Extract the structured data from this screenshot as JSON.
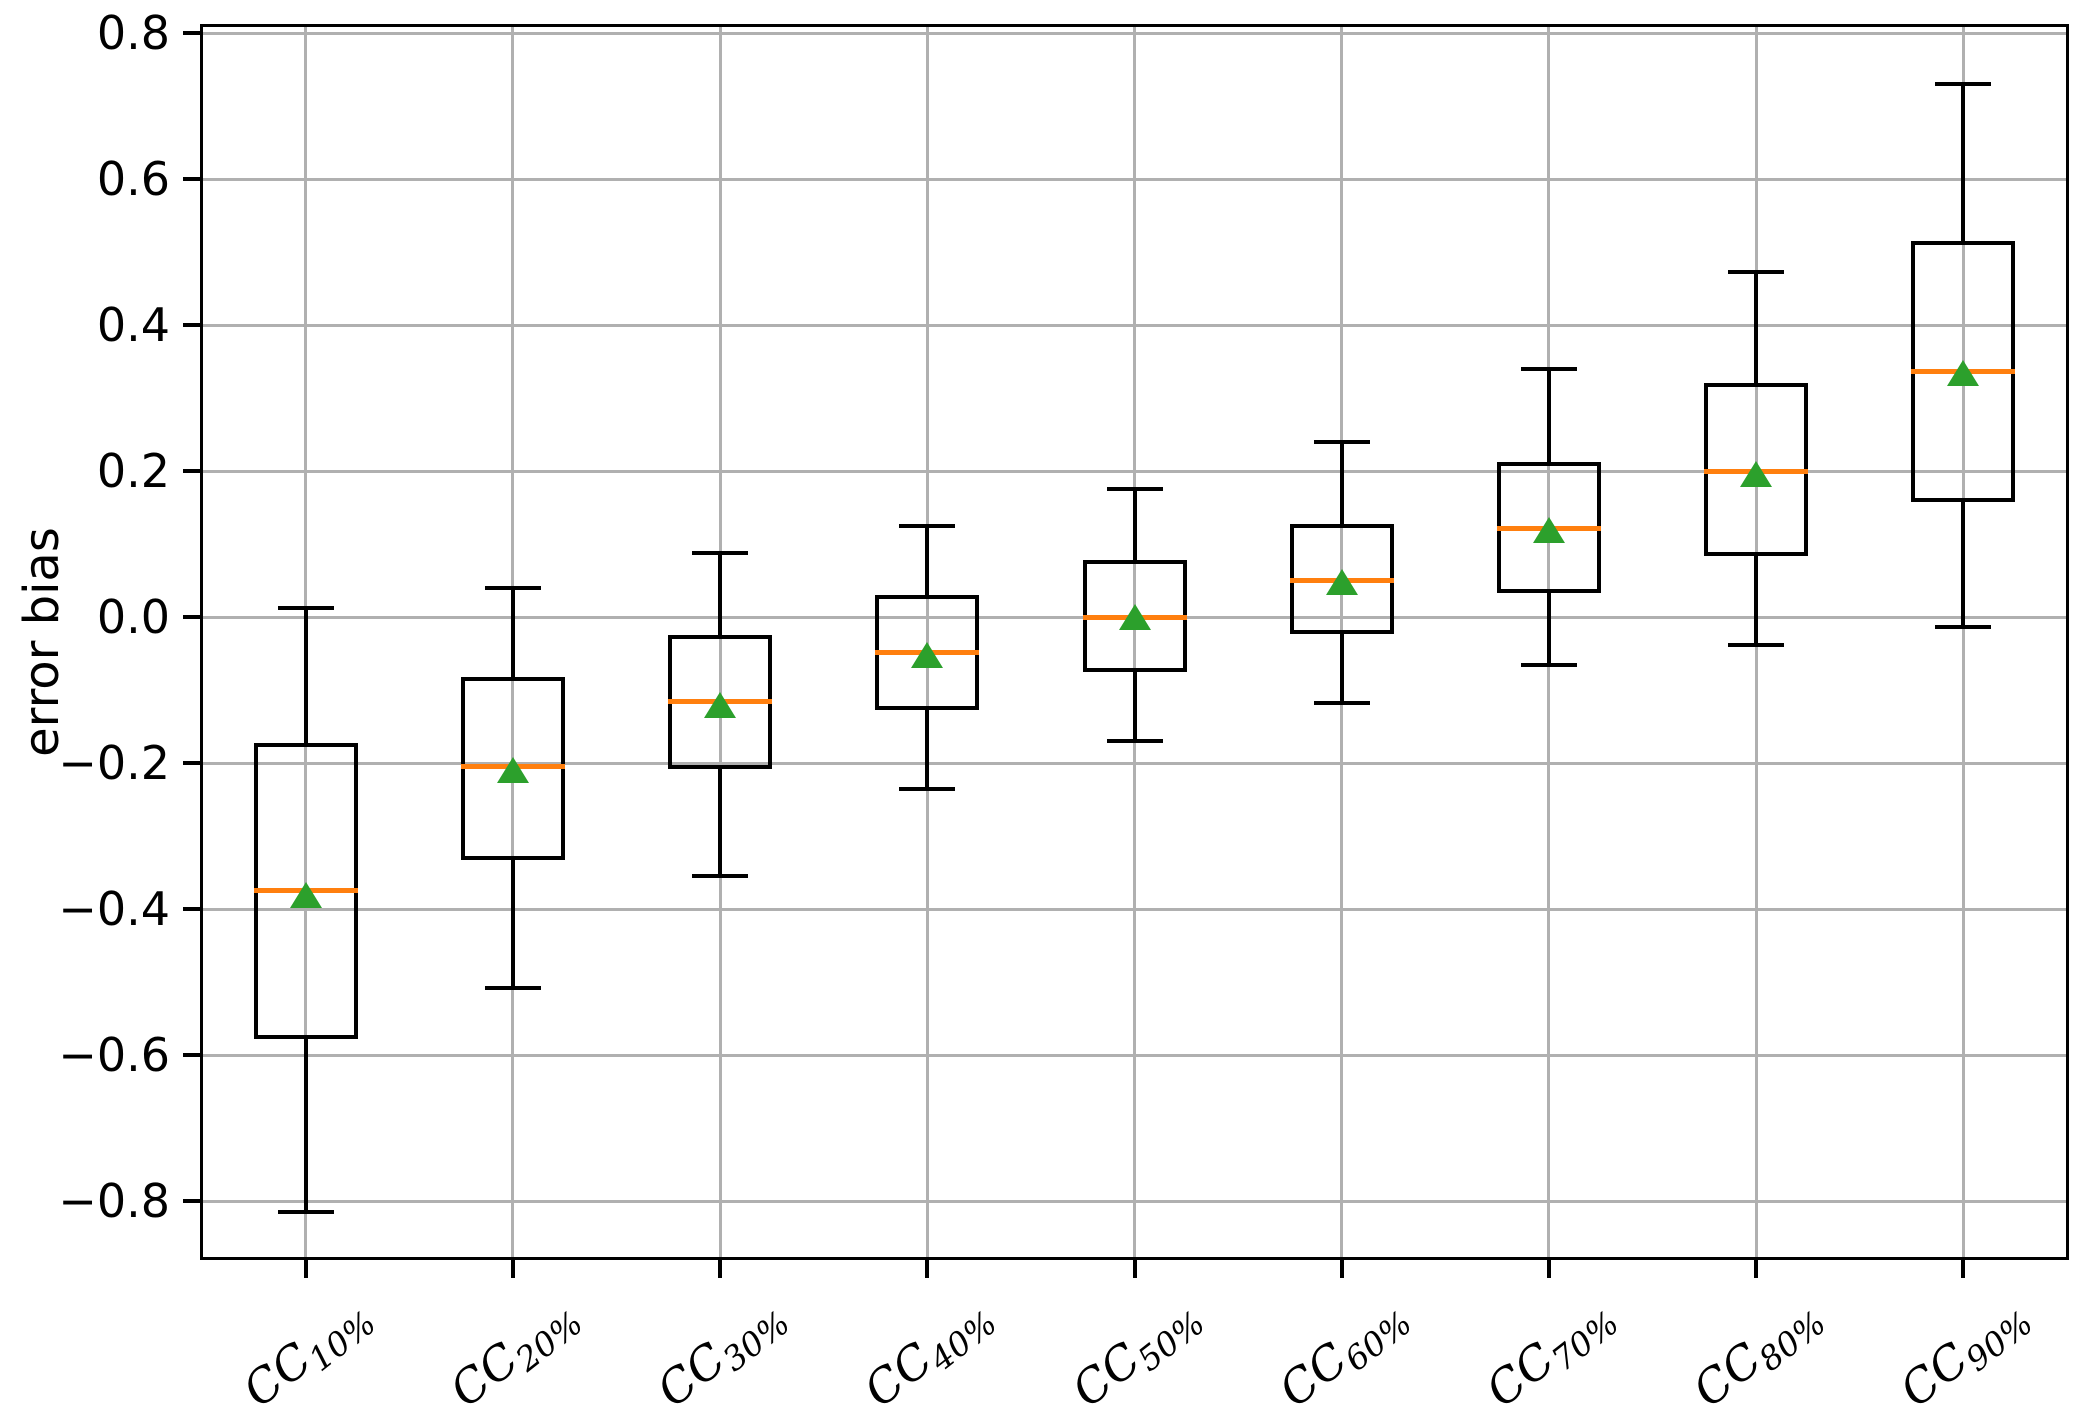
{
  "figure": {
    "ylabel": "error bias"
  },
  "chart_data": {
    "type": "boxplot",
    "title": "",
    "xlabel": "",
    "ylabel": "error bias",
    "grid": true,
    "ylim": [
      -0.878,
      0.81
    ],
    "yticks": [
      0.8,
      0.6,
      0.4,
      0.2,
      0.0,
      -0.2,
      -0.4,
      -0.6,
      -0.8
    ],
    "ytick_labels": [
      "0.8",
      "0.6",
      "0.4",
      "0.2",
      "0.0",
      "−0.2",
      "−0.4",
      "−0.6",
      "−0.8"
    ],
    "colors": {
      "box_edge": "#000000",
      "median": "#ff7f0e",
      "mean_marker": "#2ca02c",
      "grid": "#b0b0b0"
    },
    "categories": [
      {
        "base": "CC",
        "sub": "10%"
      },
      {
        "base": "CC",
        "sub": "20%"
      },
      {
        "base": "CC",
        "sub": "30%"
      },
      {
        "base": "CC",
        "sub": "40%"
      },
      {
        "base": "CC",
        "sub": "50%"
      },
      {
        "base": "CC",
        "sub": "60%"
      },
      {
        "base": "CC",
        "sub": "70%"
      },
      {
        "base": "CC",
        "sub": "80%"
      },
      {
        "base": "CC",
        "sub": "90%"
      }
    ],
    "series": [
      {
        "label": "CC 10%",
        "whisker_low": -0.815,
        "q1": -0.575,
        "median": -0.375,
        "mean": -0.38,
        "q3": -0.175,
        "whisker_high": 0.012
      },
      {
        "label": "CC 20%",
        "whisker_low": -0.508,
        "q1": -0.33,
        "median": -0.205,
        "mean": -0.21,
        "q3": -0.085,
        "whisker_high": 0.04
      },
      {
        "label": "CC 30%",
        "whisker_low": -0.355,
        "q1": -0.205,
        "median": -0.115,
        "mean": -0.12,
        "q3": -0.027,
        "whisker_high": 0.088
      },
      {
        "label": "CC 40%",
        "whisker_low": -0.235,
        "q1": -0.125,
        "median": -0.048,
        "mean": -0.052,
        "q3": 0.027,
        "whisker_high": 0.125
      },
      {
        "label": "CC 50%",
        "whisker_low": -0.17,
        "q1": -0.072,
        "median": 0.0,
        "mean": 0.0,
        "q3": 0.075,
        "whisker_high": 0.176
      },
      {
        "label": "CC 60%",
        "whisker_low": -0.118,
        "q1": -0.02,
        "median": 0.05,
        "mean": 0.048,
        "q3": 0.125,
        "whisker_high": 0.24
      },
      {
        "label": "CC 70%",
        "whisker_low": -0.066,
        "q1": 0.036,
        "median": 0.121,
        "mean": 0.12,
        "q3": 0.21,
        "whisker_high": 0.34
      },
      {
        "label": "CC 80%",
        "whisker_low": -0.038,
        "q1": 0.086,
        "median": 0.199,
        "mean": 0.196,
        "q3": 0.318,
        "whisker_high": 0.473
      },
      {
        "label": "CC 90%",
        "whisker_low": -0.013,
        "q1": 0.16,
        "median": 0.336,
        "mean": 0.335,
        "q3": 0.513,
        "whisker_high": 0.731
      }
    ]
  }
}
